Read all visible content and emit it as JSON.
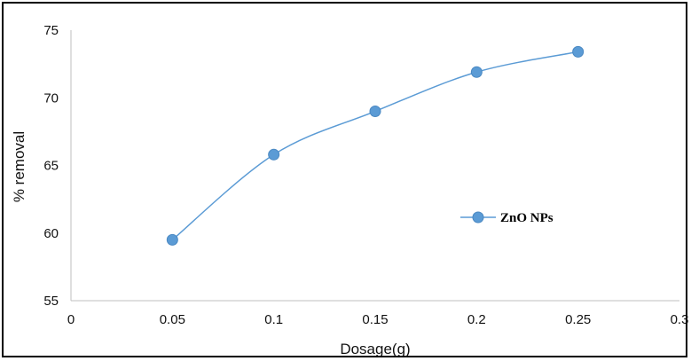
{
  "chart_data": {
    "type": "line",
    "title": "",
    "xlabel": "Dosage(g)",
    "ylabel": "% removal",
    "xlim": [
      0,
      0.3
    ],
    "ylim": [
      55,
      75
    ],
    "x_ticks": [
      "0",
      "0.05",
      "0.1",
      "0.15",
      "0.2",
      "0.25",
      "0.3"
    ],
    "y_ticks": [
      "55",
      "60",
      "65",
      "70",
      "75"
    ],
    "grid": false,
    "smoothed": true,
    "legend_position": "right-middle",
    "series": [
      {
        "name": "ZnO NPs",
        "color": "#5b9bd5",
        "marker": "circle",
        "x": [
          0.05,
          0.1,
          0.15,
          0.2,
          0.25
        ],
        "y": [
          59.5,
          65.8,
          69.0,
          71.9,
          73.4
        ]
      }
    ]
  }
}
